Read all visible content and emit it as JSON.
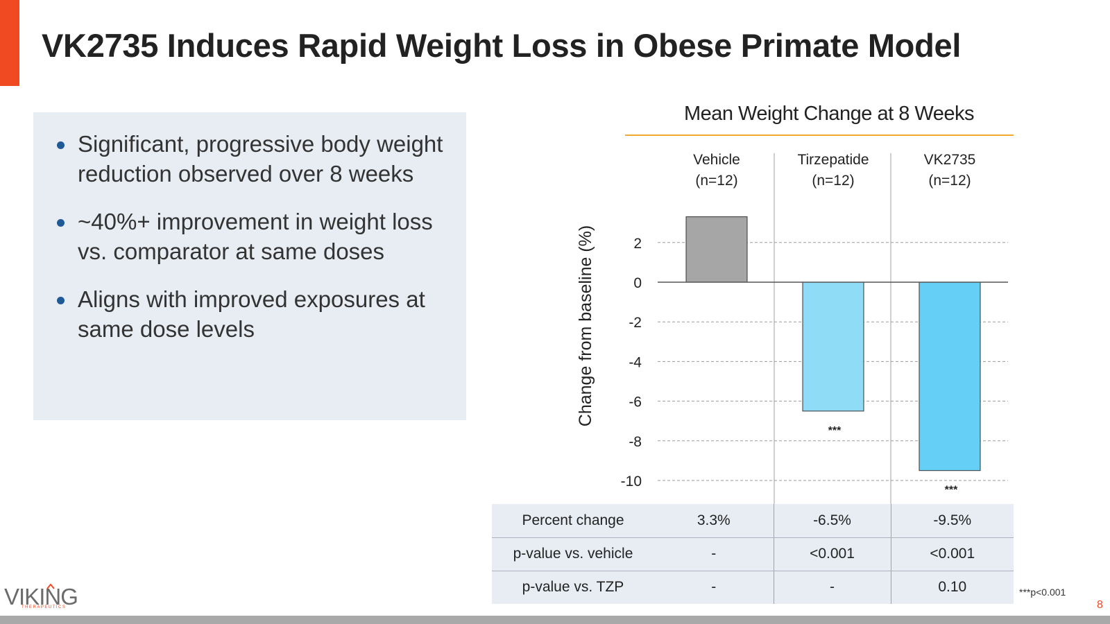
{
  "slide": {
    "title": "VK2735 Induces Rapid Weight Loss in Obese Primate Model",
    "page_number": "8",
    "footnote": "***p<0.001",
    "accent_color": "#f04a23"
  },
  "logo": {
    "name": "VIKING",
    "subtitle": "THERAPEUTICS"
  },
  "bullets": [
    "Significant, progressive body weight reduction observed over 8 weeks",
    "~40%+ improvement in weight loss vs. comparator at same doses",
    "Aligns with improved exposures at same dose levels"
  ],
  "chart_data": {
    "type": "bar",
    "title": "Mean Weight Change at 8 Weeks",
    "xlabel": "",
    "ylabel": "Change from baseline (%)",
    "categories": [
      {
        "name": "Vehicle",
        "n": "(n=12)"
      },
      {
        "name": "Tirzepatide",
        "n": "(n=12)"
      },
      {
        "name": "VK2735",
        "n": "(n=12)"
      }
    ],
    "values": [
      3.3,
      -6.5,
      -9.5
    ],
    "significance": [
      "",
      "***",
      "***"
    ],
    "bar_colors": [
      "#a6a6a6",
      "#8fdcf7",
      "#66cff5"
    ],
    "yticks": [
      2,
      0,
      -2,
      -4,
      -6,
      -8,
      -10
    ],
    "ylim": [
      -10.5,
      3.5
    ],
    "grid": true,
    "title_underline_color": "#f0a830"
  },
  "table": {
    "rows": [
      {
        "label": "Percent change",
        "values": [
          "3.3%",
          "-6.5%",
          "-9.5%"
        ]
      },
      {
        "label": "p-value vs. vehicle",
        "values": [
          "-",
          "<0.001",
          "<0.001"
        ]
      },
      {
        "label": "p-value vs. TZP",
        "values": [
          "-",
          "-",
          "0.10"
        ]
      }
    ]
  }
}
